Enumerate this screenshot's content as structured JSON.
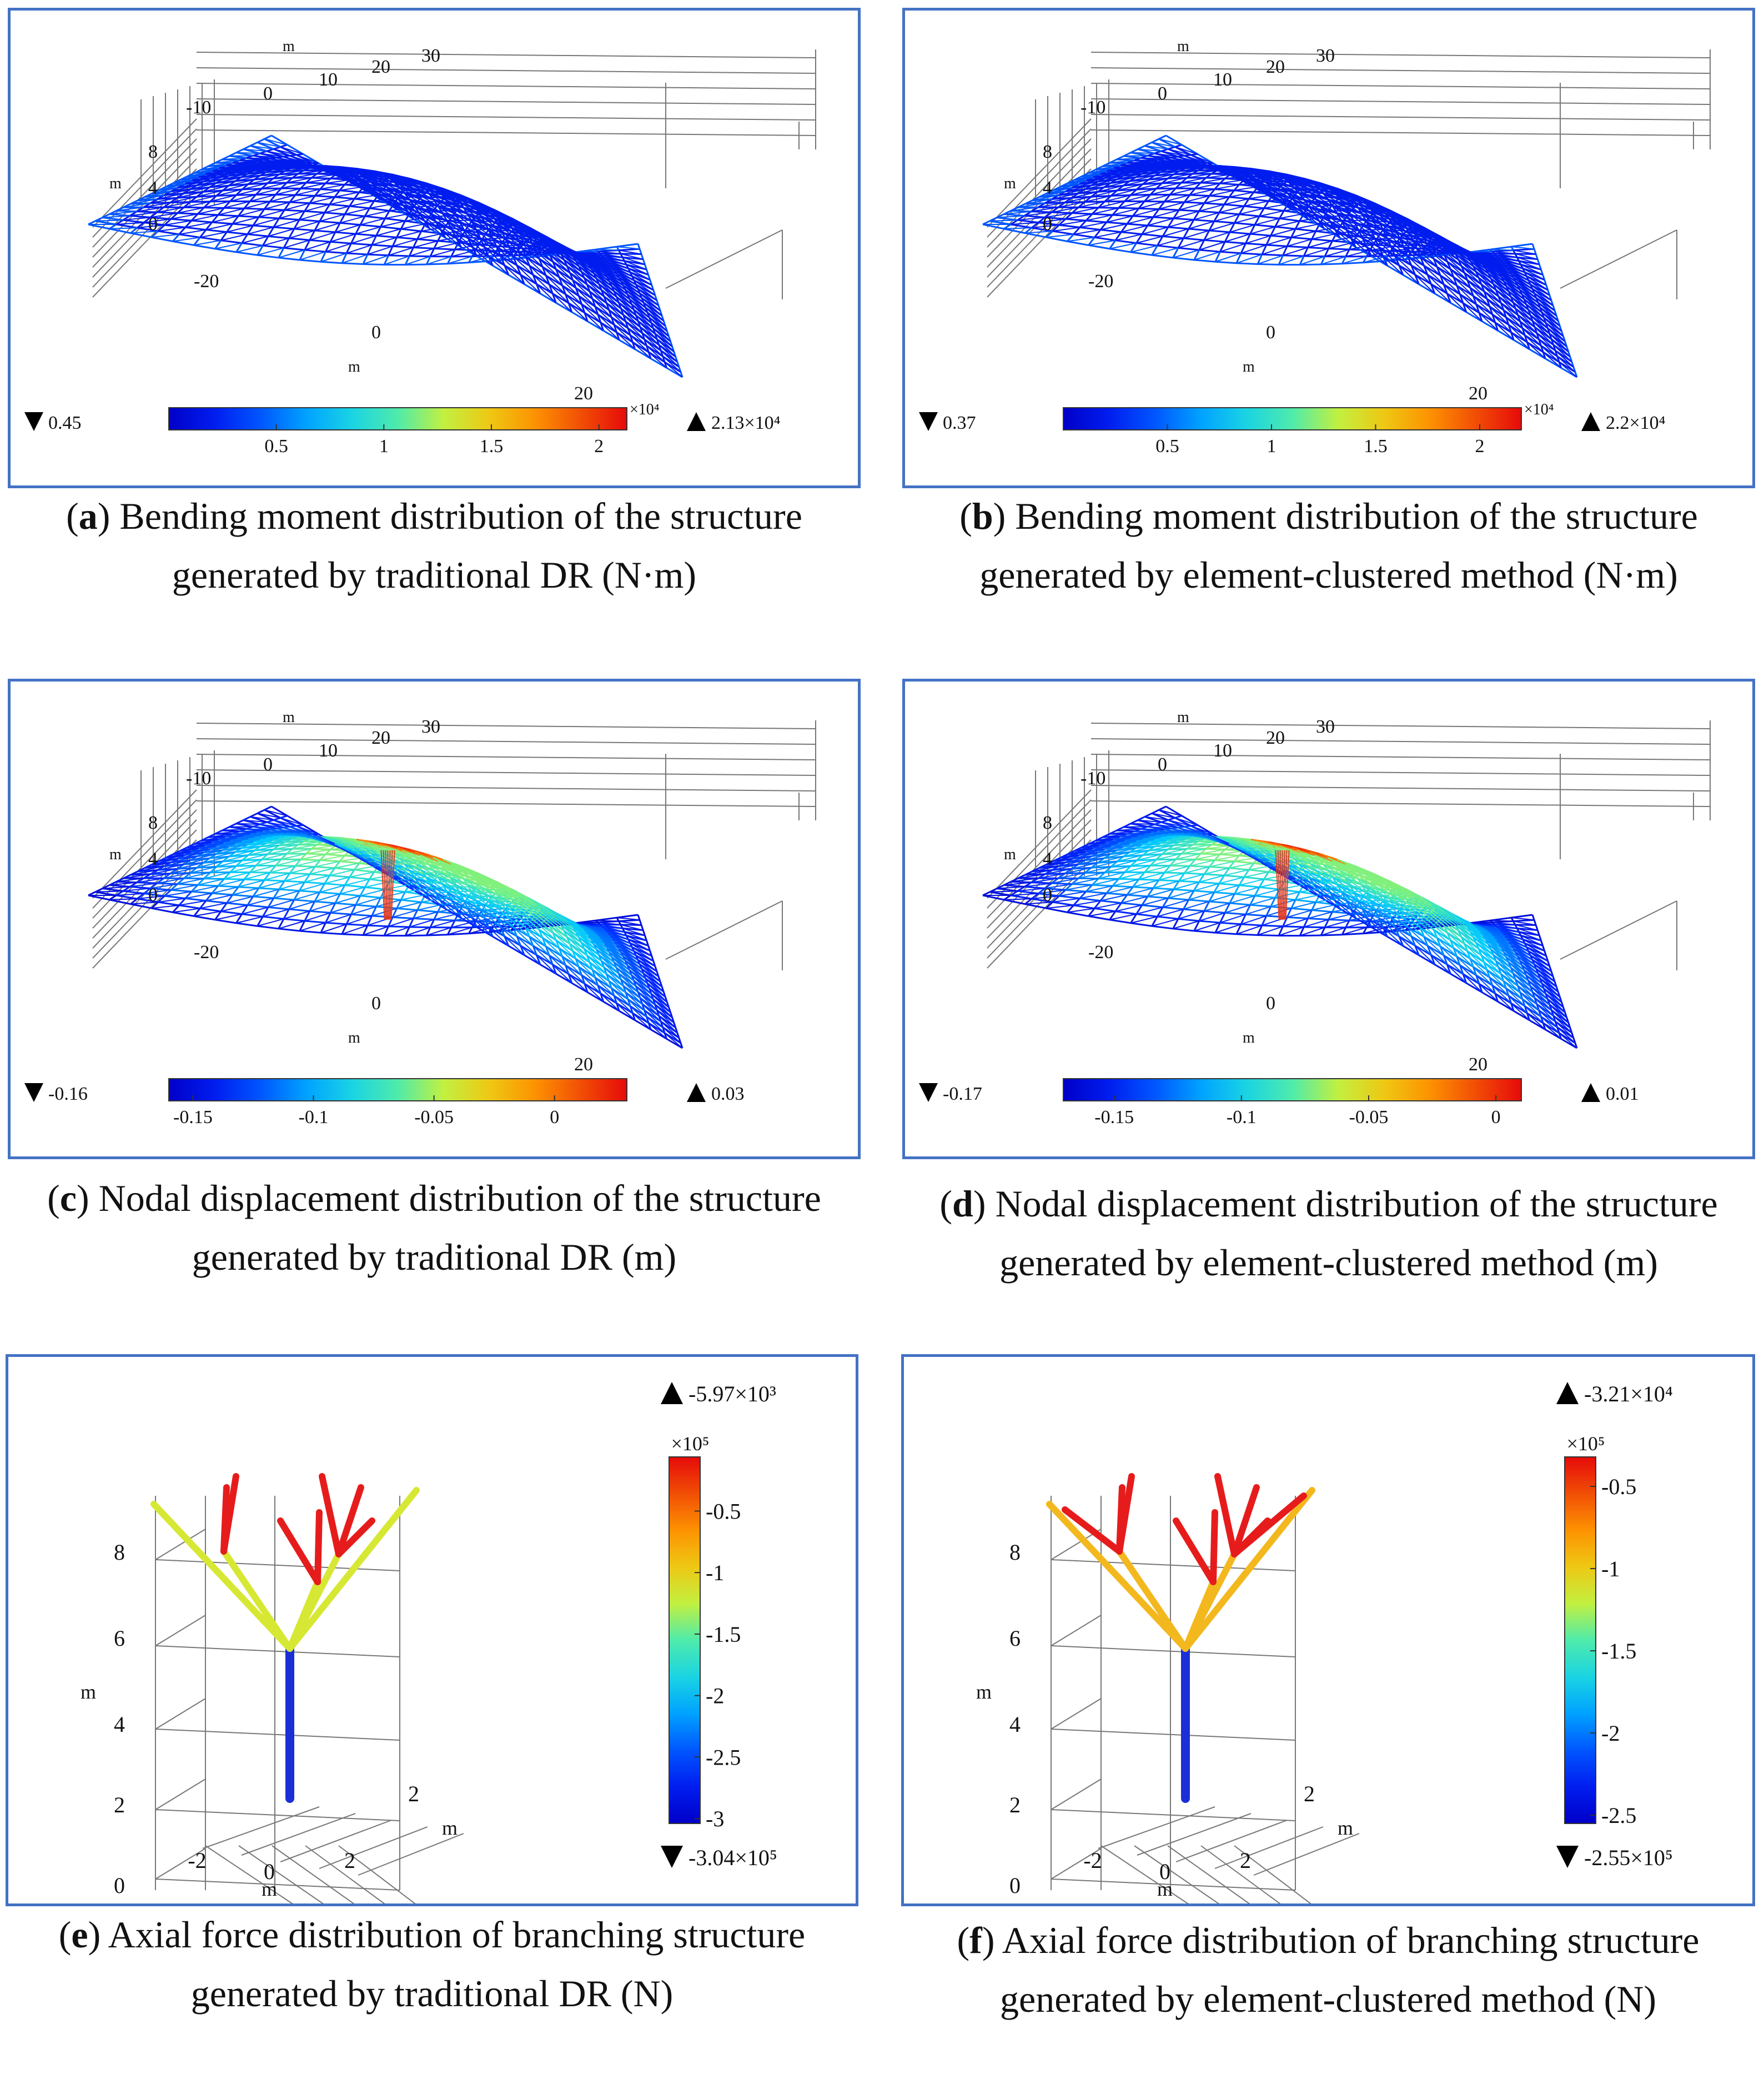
{
  "panels": [
    {
      "id": "a",
      "kind": "shell",
      "colormap": "bending",
      "axes": {
        "unit": "m",
        "top_ticks": [
          "-10",
          "0",
          "10",
          "20",
          "30"
        ],
        "z_ticks": [
          "8",
          "4",
          "0"
        ],
        "y_ticks": [
          "-20",
          "0",
          "20"
        ]
      },
      "colorbar": {
        "min_label": "0.45",
        "max_label": "2.13×10⁴",
        "multiplier": "×10⁴",
        "ticks": [
          "0.5",
          "1",
          "1.5",
          "2"
        ],
        "tick_values": [
          0.5,
          1,
          1.5,
          2
        ],
        "range": [
          0.0,
          2.13
        ]
      },
      "caption": {
        "letter": "a",
        "text": "Bending moment distribution of the structure generated by traditional DR (N·m)"
      }
    },
    {
      "id": "b",
      "kind": "shell",
      "colormap": "bending",
      "axes": {
        "unit": "m",
        "top_ticks": [
          "-10",
          "0",
          "10",
          "20",
          "30"
        ],
        "z_ticks": [
          "8",
          "4",
          "0"
        ],
        "y_ticks": [
          "-20",
          "0",
          "20"
        ]
      },
      "colorbar": {
        "min_label": "0.37",
        "max_label": "2.2×10⁴",
        "multiplier": "×10⁴",
        "ticks": [
          "0.5",
          "1",
          "1.5",
          "2"
        ],
        "tick_values": [
          0.5,
          1,
          1.5,
          2
        ],
        "range": [
          0.0,
          2.2
        ]
      },
      "caption": {
        "letter": "b",
        "text": "Bending moment distribution of the structure generated by element-clustered method (N·m)"
      }
    },
    {
      "id": "c",
      "kind": "shell",
      "colormap": "displacement",
      "axes": {
        "unit": "m",
        "top_ticks": [
          "-10",
          "0",
          "10",
          "20",
          "30"
        ],
        "z_ticks": [
          "8",
          "4",
          "0"
        ],
        "y_ticks": [
          "-20",
          "0",
          "20"
        ]
      },
      "colorbar": {
        "min_label": "-0.16",
        "max_label": "0.03",
        "multiplier": "",
        "ticks": [
          "-0.15",
          "-0.1",
          "-0.05",
          "0"
        ],
        "tick_values": [
          -0.15,
          -0.1,
          -0.05,
          0
        ],
        "range": [
          -0.16,
          0.03
        ]
      },
      "caption": {
        "letter": "c",
        "text": "Nodal displacement distribution of the structure generated by traditional DR (m)"
      }
    },
    {
      "id": "d",
      "kind": "shell",
      "colormap": "displacement",
      "axes": {
        "unit": "m",
        "top_ticks": [
          "-10",
          "0",
          "10",
          "20",
          "30"
        ],
        "z_ticks": [
          "8",
          "4",
          "0"
        ],
        "y_ticks": [
          "-20",
          "0",
          "20"
        ]
      },
      "colorbar": {
        "min_label": "-0.17",
        "max_label": "0.01",
        "multiplier": "",
        "ticks": [
          "-0.15",
          "-0.1",
          "-0.05",
          "0"
        ],
        "tick_values": [
          -0.15,
          -0.1,
          -0.05,
          0
        ],
        "range": [
          -0.17,
          0.01
        ]
      },
      "caption": {
        "letter": "d",
        "text": "Nodal displacement distribution of the structure generated by element-clustered method (m)"
      }
    },
    {
      "id": "e",
      "kind": "tree",
      "axes": {
        "unit": "m",
        "z_ticks": [
          "8",
          "6",
          "4",
          "2",
          "0"
        ],
        "x_ticks": [
          "-2",
          "0",
          "2"
        ],
        "y_ticks": [
          "2"
        ]
      },
      "colorbar": {
        "max_label": "-5.97×10³",
        "min_label": "-3.04×10⁵",
        "multiplier": "×10⁵",
        "ticks": [
          "-0.5",
          "-1",
          "-1.5",
          "-2",
          "-2.5",
          "-3"
        ],
        "tick_values": [
          -0.5,
          -1,
          -1.5,
          -2,
          -2.5,
          -3
        ],
        "range": [
          -3.04,
          -0.0597
        ]
      },
      "branch_colors": {
        "column": "#1a2fd6",
        "lower": "#d6e833",
        "upper": "#e61c1c"
      },
      "caption": {
        "letter": "e",
        "text": "Axial force distribution of branching structure generated by traditional DR (N)"
      }
    },
    {
      "id": "f",
      "kind": "tree",
      "axes": {
        "unit": "m",
        "z_ticks": [
          "8",
          "6",
          "4",
          "2",
          "0"
        ],
        "x_ticks": [
          "-2",
          "0",
          "2"
        ],
        "y_ticks": [
          "2"
        ]
      },
      "colorbar": {
        "max_label": "-3.21×10⁴",
        "min_label": "-2.55×10⁵",
        "multiplier": "×10⁵",
        "ticks": [
          "-0.5",
          "-1",
          "-1.5",
          "-2",
          "-2.5"
        ],
        "tick_values": [
          -0.5,
          -1,
          -1.5,
          -2,
          -2.5
        ],
        "range": [
          -2.55,
          -0.321
        ]
      },
      "branch_colors": {
        "column": "#1a2fd6",
        "lower": "#f2b81e",
        "upper": "#e61c1c"
      },
      "caption": {
        "letter": "f",
        "text": "Axial force distribution of branching structure generated by element-clustered method (N)"
      }
    }
  ]
}
